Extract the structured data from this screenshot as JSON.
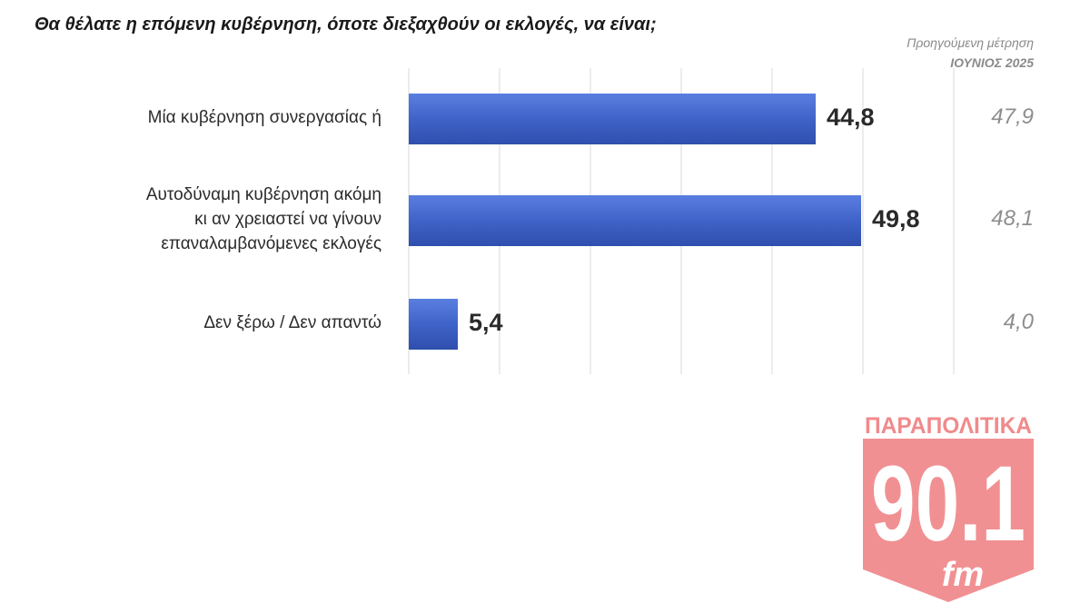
{
  "title": "Θα θέλατε η επόμενη κυβέρνηση, όποτε διεξαχθούν οι εκλογές, να είναι;",
  "previous_header": {
    "line1": "Προηγούμενη μέτρηση",
    "line2": "ΙΟΥΝΙΟΣ 2025"
  },
  "chart_data": {
    "type": "bar",
    "orientation": "horizontal",
    "categories": [
      [
        "Μία κυβέρνηση συνεργασίας ή"
      ],
      [
        "Αυτοδύναμη κυβέρνηση ακόμη",
        "κι αν χρειαστεί να γίνουν",
        "επαναλαμβανόμενες εκλογές"
      ],
      [
        "Δεν ξέρω / Δεν απαντώ"
      ]
    ],
    "values": [
      44.8,
      49.8,
      5.4
    ],
    "value_labels": [
      "44,8",
      "49,8",
      "5,4"
    ],
    "previous_values": [
      47.9,
      48.1,
      4.0
    ],
    "previous_labels": [
      "47,9",
      "48,1",
      "4,0"
    ],
    "xlim": [
      0,
      60
    ],
    "grid": true,
    "bar_color": "#3f63c8"
  },
  "logo": {
    "line1": "ΠΑΡΑΠΟΛΙΤΙΚΑ",
    "line2": "90.1",
    "line3": "fm",
    "color": "#f08a8c"
  }
}
